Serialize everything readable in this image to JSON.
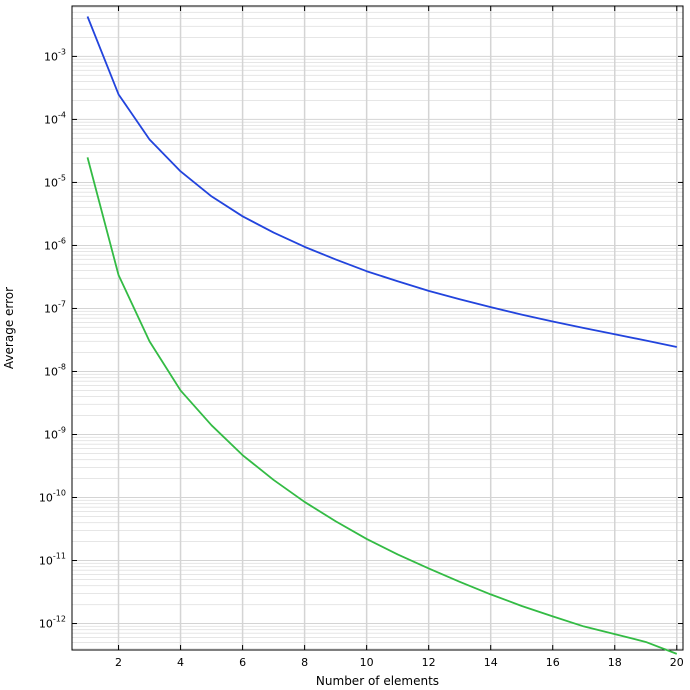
{
  "chart_data": {
    "type": "line",
    "title": "",
    "xlabel": "Number of elements",
    "ylabel": "Average error",
    "xlim": [
      0.5,
      20.2
    ],
    "ylim_log10": [
      -12.42,
      -2.2
    ],
    "yscale": "log",
    "grid": true,
    "x_ticks": [
      2,
      4,
      6,
      8,
      10,
      12,
      14,
      16,
      18,
      20
    ],
    "y_tick_exponents": [
      -3,
      -4,
      -5,
      -6,
      -7,
      -8,
      -9,
      -10,
      -11,
      -12
    ],
    "y_tick_labels": [
      "10^-3",
      "10^-4",
      "10^-5",
      "10^-6",
      "10^-7",
      "10^-8",
      "10^-9",
      "10^-10",
      "10^-11",
      "10^-12"
    ],
    "x": [
      1,
      2,
      3,
      4,
      5,
      6,
      7,
      8,
      9,
      10,
      11,
      12,
      13,
      14,
      15,
      16,
      17,
      18,
      19,
      20
    ],
    "series": [
      {
        "color": "#2244dd",
        "values": [
          0.0043,
          0.00025,
          4.8e-05,
          1.5e-05,
          6e-06,
          2.9e-06,
          1.6e-06,
          9.5e-07,
          6e-07,
          3.9e-07,
          2.7e-07,
          1.9e-07,
          1.4e-07,
          1.05e-07,
          8e-08,
          6.2e-08,
          4.9e-08,
          3.9e-08,
          3.1e-08,
          2.45e-08
        ]
      },
      {
        "color": "#33bb44",
        "values": [
          2.5e-05,
          3.4e-07,
          3e-08,
          5e-09,
          1.4e-09,
          4.7e-10,
          1.9e-10,
          8.5e-11,
          4.2e-11,
          2.2e-11,
          1.25e-11,
          7.5e-12,
          4.6e-12,
          2.9e-12,
          1.9e-12,
          1.3e-12,
          9e-13,
          6.8e-13,
          5.1e-13,
          3.3e-13
        ]
      }
    ]
  }
}
